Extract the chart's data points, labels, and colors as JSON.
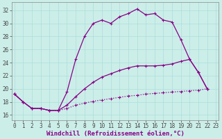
{
  "xlabel": "Windchill (Refroidissement éolien,°C)",
  "bg_color": "#cceee8",
  "grid_color": "#aadddd",
  "line_color": "#880088",
  "x_ticks": [
    0,
    1,
    2,
    3,
    4,
    5,
    6,
    7,
    8,
    9,
    10,
    11,
    12,
    13,
    14,
    15,
    16,
    17,
    18,
    19,
    20,
    21,
    22,
    23
  ],
  "y_ticks": [
    16,
    18,
    20,
    22,
    24,
    26,
    28,
    30,
    32
  ],
  "xlim": [
    -0.3,
    23.3
  ],
  "ylim": [
    15.2,
    33.2
  ],
  "line1_x": [
    0,
    1,
    2,
    3,
    4,
    5,
    6,
    7,
    8,
    9,
    10,
    11,
    12,
    13,
    14,
    15,
    16,
    17,
    18,
    19,
    20,
    21,
    22
  ],
  "line1_y": [
    19.2,
    18.0,
    17.0,
    17.0,
    16.7,
    16.7,
    19.5,
    24.5,
    28.0,
    30.0,
    30.5,
    30.0,
    31.0,
    31.5,
    32.2,
    31.3,
    31.5,
    30.5,
    30.2,
    27.5,
    24.5,
    22.5,
    20.0
  ],
  "line2_x": [
    0,
    1,
    2,
    3,
    4,
    5,
    6,
    7,
    8,
    9,
    10,
    11,
    12,
    13,
    14,
    15,
    16,
    17,
    18,
    19,
    20,
    21,
    22
  ],
  "line2_y": [
    19.2,
    18.0,
    17.0,
    17.0,
    16.7,
    16.7,
    17.5,
    18.8,
    20.0,
    21.0,
    21.8,
    22.3,
    22.8,
    23.2,
    23.5,
    23.5,
    23.5,
    23.6,
    23.8,
    24.2,
    24.5,
    22.5,
    20.0
  ],
  "line3_x": [
    0,
    1,
    2,
    3,
    4,
    5,
    6,
    7,
    8,
    9,
    10,
    11,
    12,
    13,
    14,
    15,
    16,
    17,
    18,
    19,
    20,
    21,
    22
  ],
  "line3_y": [
    19.2,
    18.0,
    17.0,
    17.0,
    16.7,
    16.7,
    17.0,
    17.5,
    17.8,
    18.1,
    18.3,
    18.5,
    18.7,
    18.9,
    19.0,
    19.2,
    19.3,
    19.4,
    19.5,
    19.6,
    19.7,
    19.8,
    20.0
  ],
  "line1_markers_x": [
    0,
    1,
    2,
    3,
    4,
    5,
    6,
    7,
    8,
    9,
    10,
    11,
    12,
    13,
    14,
    15,
    16,
    17,
    18,
    19,
    20,
    21,
    22
  ],
  "markersize": 3.5,
  "linewidth": 0.9,
  "tick_fontsize": 5.5,
  "xlabel_fontsize": 6.5,
  "spine_color": "#888888"
}
